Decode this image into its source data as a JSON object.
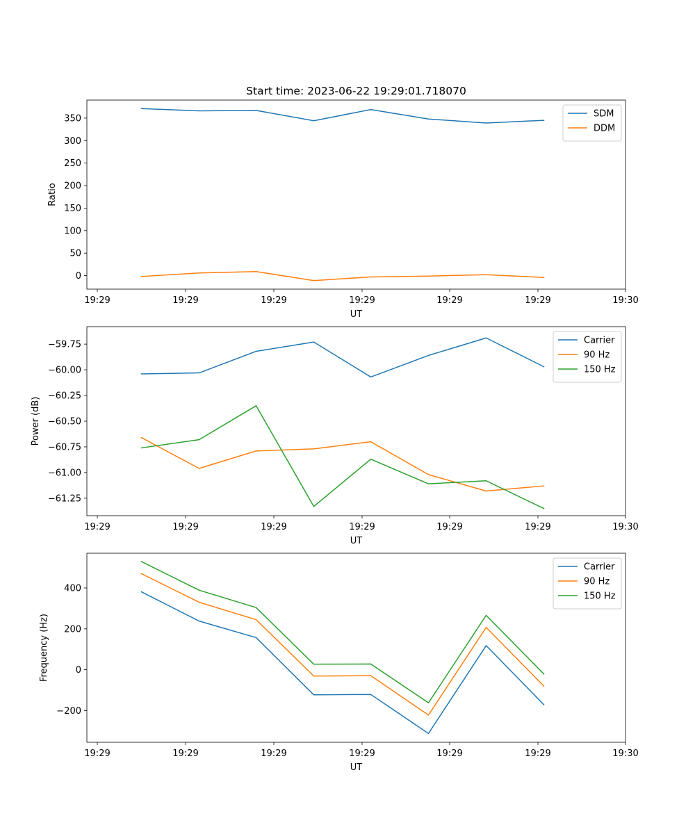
{
  "chart_data": [
    {
      "type": "line",
      "title": "Start time: 2023-06-22 19:29:01.718070",
      "xlabel": "UT",
      "ylabel": "Ratio",
      "x_tick_labels": [
        "19:29",
        "19:29",
        "19:29",
        "19:29",
        "19:29",
        "19:29",
        "19:29",
        "19:30"
      ],
      "y_ticks": [
        0,
        50,
        100,
        150,
        200,
        250,
        300,
        350
      ],
      "y_tick_labels": [
        "0",
        "50",
        "100",
        "150",
        "200",
        "250",
        "300",
        "350"
      ],
      "ylim": [
        -30,
        390
      ],
      "legend_position": "top-right",
      "grid": false,
      "series": [
        {
          "name": "SDM",
          "color": "#1f77b4",
          "values": [
            371,
            366,
            367,
            344,
            369,
            348,
            339,
            345
          ]
        },
        {
          "name": "DDM",
          "color": "#ff7f0e",
          "values": [
            -2,
            6,
            9,
            -11,
            -3,
            -1,
            2,
            -4
          ]
        }
      ]
    },
    {
      "type": "line",
      "title": "",
      "xlabel": "UT",
      "ylabel": "Power (dB)",
      "x_tick_labels": [
        "19:29",
        "19:29",
        "19:29",
        "19:29",
        "19:29",
        "19:29",
        "19:29",
        "19:30"
      ],
      "y_ticks": [
        -61.25,
        -61.0,
        -60.75,
        -60.5,
        -60.25,
        -60.0,
        -59.75
      ],
      "y_tick_labels": [
        "−61.25",
        "−61.00",
        "−60.75",
        "−60.50",
        "−60.25",
        "−60.00",
        "−59.75"
      ],
      "ylim": [
        -61.42,
        -59.58
      ],
      "legend_position": "top-right",
      "grid": false,
      "series": [
        {
          "name": "Carrier",
          "color": "#1f77b4",
          "values": [
            -60.04,
            -60.03,
            -59.82,
            -59.73,
            -60.07,
            -59.86,
            -59.69,
            -59.97
          ]
        },
        {
          "name": "90 Hz",
          "color": "#ff7f0e",
          "values": [
            -60.66,
            -60.96,
            -60.79,
            -60.77,
            -60.7,
            -61.02,
            -61.18,
            -61.13
          ]
        },
        {
          "name": "150 Hz",
          "color": "#2ca02c",
          "values": [
            -60.76,
            -60.68,
            -60.35,
            -61.33,
            -60.87,
            -61.11,
            -61.08,
            -61.35
          ]
        }
      ]
    },
    {
      "type": "line",
      "title": "",
      "xlabel": "UT",
      "ylabel": "Frequency (Hz)",
      "x_tick_labels": [
        "19:29",
        "19:29",
        "19:29",
        "19:29",
        "19:29",
        "19:29",
        "19:29",
        "19:30"
      ],
      "y_ticks": [
        -200,
        0,
        200,
        400
      ],
      "y_tick_labels": [
        "−200",
        "0",
        "200",
        "400"
      ],
      "ylim": [
        -355,
        570
      ],
      "legend_position": "top-right",
      "grid": false,
      "series": [
        {
          "name": "Carrier",
          "color": "#1f77b4",
          "values": [
            381,
            238,
            157,
            -123,
            -121,
            -312,
            118,
            -171
          ]
        },
        {
          "name": "90 Hz",
          "color": "#ff7f0e",
          "values": [
            470,
            330,
            245,
            -31,
            -29,
            -222,
            207,
            -80
          ]
        },
        {
          "name": "150 Hz",
          "color": "#2ca02c",
          "values": [
            529,
            389,
            304,
            27,
            28,
            -162,
            266,
            -21
          ]
        }
      ]
    }
  ]
}
